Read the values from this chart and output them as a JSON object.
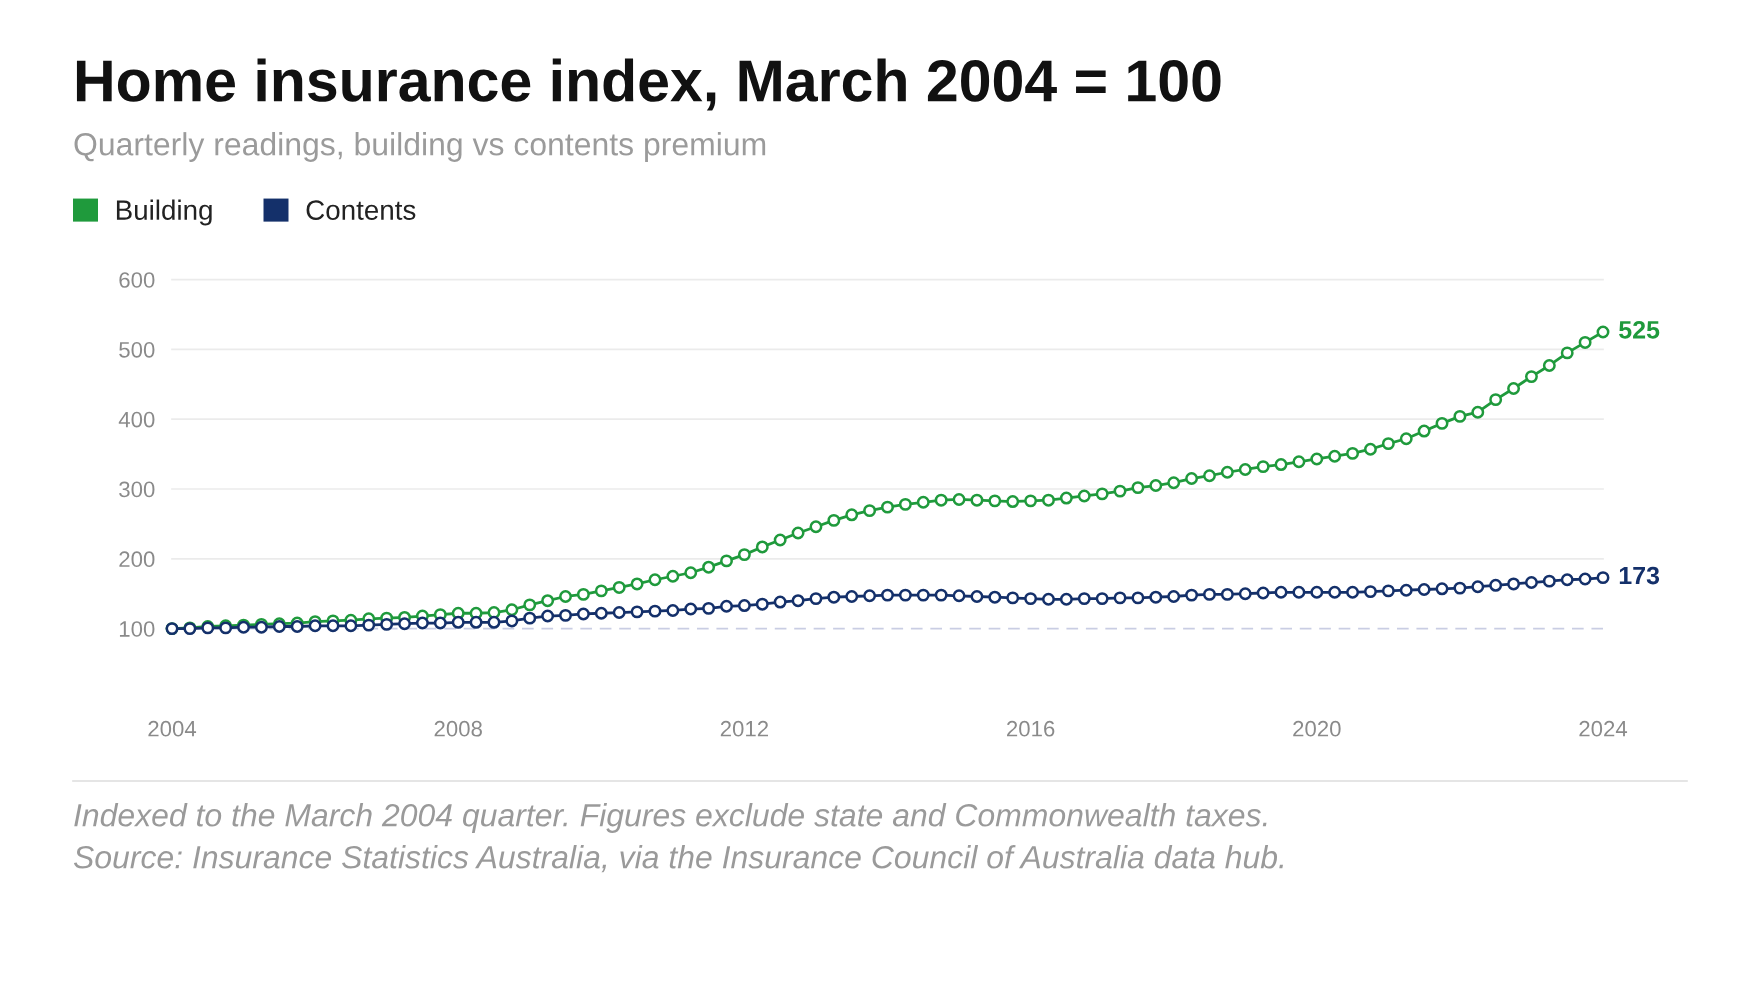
{
  "chart_data": {
    "type": "line",
    "title": "Home insurance index, March 2004 = 100",
    "subtitle": "Quarterly readings, building vs contents premium",
    "x": [
      2004,
      2004.25,
      2004.5,
      2004.75,
      2005,
      2005.25,
      2005.5,
      2005.75,
      2006,
      2006.25,
      2006.5,
      2006.75,
      2007,
      2007.25,
      2007.5,
      2007.75,
      2008,
      2008.25,
      2008.5,
      2008.75,
      2009,
      2009.25,
      2009.5,
      2009.75,
      2010,
      2010.25,
      2010.5,
      2010.75,
      2011,
      2011.25,
      2011.5,
      2011.75,
      2012,
      2012.25,
      2012.5,
      2012.75,
      2013,
      2013.25,
      2013.5,
      2013.75,
      2014,
      2014.25,
      2014.5,
      2014.75,
      2015,
      2015.25,
      2015.5,
      2015.75,
      2016,
      2016.25,
      2016.5,
      2016.75,
      2017,
      2017.25,
      2017.5,
      2017.75,
      2018,
      2018.25,
      2018.5,
      2018.75,
      2019,
      2019.25,
      2019.5,
      2019.75,
      2020,
      2020.25,
      2020.5,
      2020.75,
      2021,
      2021.25,
      2021.5,
      2021.75,
      2022,
      2022.25,
      2022.5,
      2022.75,
      2023,
      2023.25,
      2023.5,
      2023.75,
      2024
    ],
    "series": [
      {
        "name": "Building",
        "color": "#1f9a3c",
        "values": [
          100,
          101,
          103,
          104,
          105,
          106,
          107,
          108,
          110,
          111,
          112,
          114,
          115,
          116,
          118,
          120,
          122,
          122,
          123,
          127,
          134,
          140,
          146,
          149,
          154,
          159,
          164,
          170,
          175,
          180,
          188,
          197,
          206,
          217,
          227,
          237,
          246,
          255,
          263,
          269,
          274,
          278,
          281,
          284,
          285,
          284,
          283,
          282,
          283,
          284,
          287,
          290,
          293,
          297,
          302,
          305,
          309,
          315,
          319,
          324,
          328,
          332,
          335,
          339,
          343,
          347,
          351,
          357,
          365,
          372,
          383,
          394,
          404,
          410,
          428,
          444,
          461,
          477,
          495,
          510,
          525
        ],
        "value_labels": [
          null,
          null,
          null,
          null,
          null,
          null,
          null,
          null,
          null,
          null,
          null,
          null,
          null,
          null,
          null,
          null,
          null,
          null,
          null,
          null,
          null,
          null,
          null,
          null,
          null,
          null,
          null,
          null,
          null,
          null,
          null,
          null,
          null,
          null,
          null,
          null,
          null,
          null,
          null,
          null,
          null,
          null,
          null,
          null,
          null,
          null,
          null,
          null,
          null,
          null,
          null,
          null,
          null,
          null,
          null,
          null,
          null,
          null,
          null,
          null,
          null,
          null,
          null,
          null,
          null,
          null,
          null,
          null,
          null,
          null,
          null,
          null,
          null,
          null,
          null,
          null,
          null,
          null,
          null,
          null,
          "525"
        ]
      },
      {
        "name": "Contents",
        "color": "#14306a",
        "values": [
          100,
          100,
          101,
          101,
          102,
          102,
          103,
          103,
          104,
          104,
          104,
          105,
          106,
          107,
          108,
          108,
          109,
          109,
          109,
          111,
          115,
          118,
          119,
          121,
          122,
          123,
          124,
          125,
          126,
          128,
          129,
          132,
          133,
          135,
          138,
          140,
          143,
          145,
          146,
          147,
          148,
          148,
          148,
          148,
          147,
          146,
          145,
          144,
          143,
          142,
          142,
          143,
          143,
          144,
          144,
          145,
          146,
          148,
          149,
          149,
          150,
          151,
          152,
          152,
          152,
          152,
          152,
          153,
          154,
          155,
          156,
          157,
          158,
          160,
          162,
          164,
          166,
          168,
          170,
          171,
          173
        ],
        "value_labels": [
          null,
          null,
          null,
          null,
          null,
          null,
          null,
          null,
          null,
          null,
          null,
          null,
          null,
          null,
          null,
          null,
          null,
          null,
          null,
          null,
          null,
          null,
          null,
          null,
          null,
          null,
          null,
          null,
          null,
          null,
          null,
          null,
          null,
          null,
          null,
          null,
          null,
          null,
          null,
          null,
          null,
          null,
          null,
          null,
          null,
          null,
          null,
          null,
          null,
          null,
          null,
          null,
          null,
          null,
          null,
          null,
          null,
          null,
          null,
          null,
          null,
          null,
          null,
          null,
          null,
          null,
          null,
          null,
          null,
          null,
          null,
          null,
          null,
          null,
          null,
          null,
          null,
          null,
          null,
          null,
          "173"
        ]
      }
    ],
    "xlim": [
      2004,
      2024
    ],
    "ylim": [
      100,
      600
    ],
    "xticks": [
      2004,
      2008,
      2012,
      2016,
      2020,
      2024
    ],
    "yticks": [
      100,
      200,
      300,
      400,
      500,
      600
    ],
    "grid": "y",
    "legend": "top left",
    "marker": "circle",
    "line_style": "solid",
    "ref_lines": [
      {
        "axis": "y",
        "value": 100,
        "color": "#c9cde3",
        "line_style": "dashed"
      }
    ],
    "annotations": [
      "Indexed to the March 2004 quarter. Figures exclude state and Commonwealth taxes.",
      "Source: Insurance Statistics Australia, via the Insurance Council of Australia data hub."
    ]
  }
}
